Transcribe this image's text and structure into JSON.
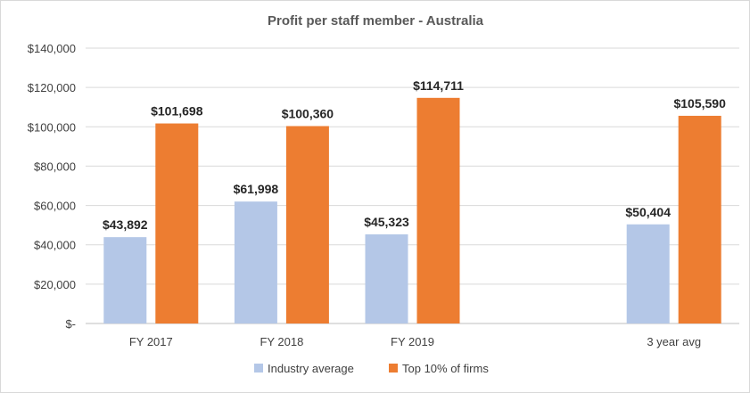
{
  "chart_data": {
    "type": "bar",
    "title": "Profit per staff member - Australia",
    "categories": [
      "FY 2017",
      "FY 2018",
      "FY 2019",
      "",
      "3 year avg"
    ],
    "series": [
      {
        "name": "Industry average",
        "color": "#b4c7e7",
        "values": [
          43892,
          61998,
          45323,
          null,
          50404
        ],
        "labels": [
          "$43,892",
          "$61,998",
          "$45,323",
          null,
          "$50,404"
        ]
      },
      {
        "name": "Top 10% of firms",
        "color": "#ed7d31",
        "values": [
          101698,
          100360,
          114711,
          null,
          105590
        ],
        "labels": [
          "$101,698",
          "$100,360",
          "$114,711",
          null,
          "$105,590"
        ]
      }
    ],
    "ylim": [
      0,
      140000
    ],
    "yticks": [
      0,
      20000,
      40000,
      60000,
      80000,
      100000,
      120000,
      140000
    ],
    "ytick_labels": [
      "$-",
      "$20,000",
      "$40,000",
      "$60,000",
      "$80,000",
      "$100,000",
      "$120,000",
      "$140,000"
    ],
    "grid": true,
    "legend_position": "bottom"
  }
}
